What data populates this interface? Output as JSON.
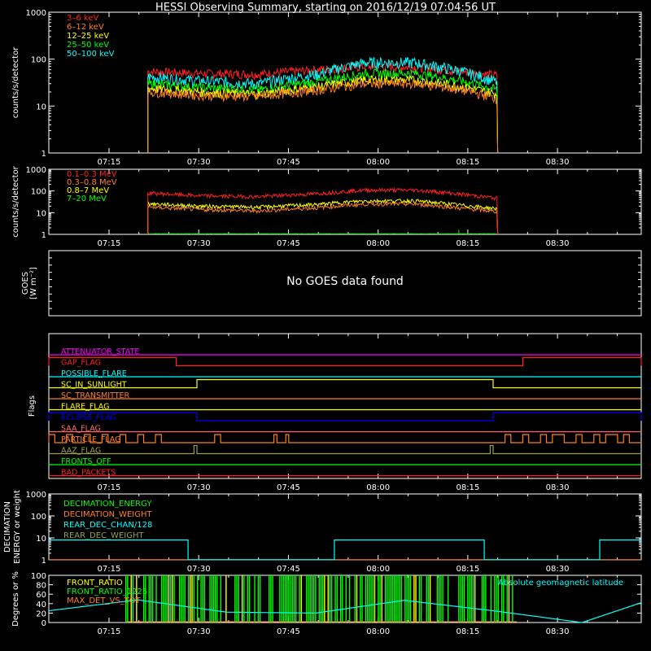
{
  "title": "HESSI Observing Summary, starting on 2016/12/19 07:04:56 UT",
  "colors": {
    "background": "#000000",
    "axis": "#ffffff",
    "red": "#ff2020",
    "orange": "#ff7f1f",
    "yellow": "#ffff00",
    "green": "#00ff00",
    "cyan": "#00ffff",
    "magenta": "#ff00ff",
    "blue": "#0000ff",
    "pink": "#ff6a6a",
    "olive": "#9aa04a",
    "lime": "#00ff00"
  },
  "time_axis": {
    "start": "07:04:56",
    "end": "08:44:00",
    "tick_labels": [
      "07:15",
      "07:30",
      "07:45",
      "08:00",
      "08:15",
      "08:30"
    ],
    "tick_minutes": [
      15,
      30,
      45,
      60,
      75,
      90
    ]
  },
  "chart_data": [
    {
      "id": "panel1",
      "type": "line",
      "ylabel": "counts/s/detector",
      "yscale": "log",
      "ylim": [
        1,
        1000
      ],
      "ytick_labels": [
        "1",
        "10",
        "100",
        "1000"
      ],
      "legend_placement": "top-left",
      "series": [
        {
          "name": "3–6 keV",
          "color_key": "red",
          "x_minutes": [
            21.5,
            30,
            40,
            50,
            58,
            66,
            74,
            80
          ],
          "y": [
            55,
            50,
            48,
            60,
            70,
            68,
            55,
            45
          ]
        },
        {
          "name": "6–12 keV",
          "color_key": "orange",
          "x_minutes": [
            21.5,
            30,
            40,
            50,
            58,
            66,
            74,
            80
          ],
          "y": [
            20,
            17,
            16,
            22,
            30,
            30,
            22,
            14
          ]
        },
        {
          "name": "12–25 keV",
          "color_key": "yellow",
          "x_minutes": [
            21.5,
            30,
            40,
            50,
            58,
            66,
            74,
            80
          ],
          "y": [
            24,
            20,
            18,
            26,
            36,
            36,
            26,
            18
          ]
        },
        {
          "name": "25–50 keV",
          "color_key": "green",
          "x_minutes": [
            21.5,
            30,
            40,
            50,
            58,
            66,
            74,
            80
          ],
          "y": [
            30,
            25,
            22,
            33,
            50,
            50,
            34,
            22
          ]
        },
        {
          "name": "50–100 keV",
          "color_key": "cyan",
          "x_minutes": [
            21.5,
            30,
            40,
            50,
            58,
            66,
            74,
            80
          ],
          "y": [
            42,
            35,
            30,
            48,
            85,
            85,
            55,
            32
          ]
        }
      ]
    },
    {
      "id": "panel2",
      "type": "line",
      "ylabel": "counts/s/detector",
      "yscale": "log",
      "ylim": [
        1,
        1000
      ],
      "ytick_labels": [
        "1",
        "10",
        "100",
        "1000"
      ],
      "legend_placement": "top-left",
      "series": [
        {
          "name": "0.1–0.3 MeV",
          "color_key": "red",
          "x_minutes": [
            21.5,
            30,
            40,
            50,
            58,
            66,
            74,
            80
          ],
          "y": [
            80,
            60,
            55,
            75,
            110,
            110,
            70,
            45
          ]
        },
        {
          "name": "0.3–0.8 MeV",
          "color_key": "orange",
          "x_minutes": [
            21.5,
            30,
            40,
            50,
            58,
            66,
            74,
            80
          ],
          "y": [
            18,
            14,
            12,
            17,
            25,
            25,
            16,
            11
          ]
        },
        {
          "name": "0.8–7 MeV",
          "color_key": "yellow",
          "x_minutes": [
            21.5,
            30,
            40,
            50,
            58,
            66,
            74,
            80
          ],
          "y": [
            26,
            20,
            18,
            24,
            35,
            35,
            22,
            15
          ]
        },
        {
          "name": "7–20 MeV",
          "color_key": "green",
          "x_minutes": [
            21.5,
            80
          ],
          "y": [
            1.05,
            1.05
          ]
        }
      ]
    },
    {
      "id": "panel3",
      "type": "line",
      "ylabel_lines": [
        "GOES",
        "[W m⁻²]"
      ],
      "ylabel_display": "GOES [W m⁻²]",
      "message": "No GOES data found",
      "series": []
    },
    {
      "id": "panel4",
      "type": "line",
      "ylabel": "Flags",
      "flags": [
        {
          "name": "ATTENUATOR_STATE",
          "color_key": "magenta",
          "on_segments": []
        },
        {
          "name": "GAP_FLAG",
          "color_key": "red",
          "on_segments": [
            [
              0,
              21.5
            ],
            [
              80,
              100
            ]
          ]
        },
        {
          "name": "POSSIBLE_FLARE",
          "color_key": "cyan",
          "on_segments": []
        },
        {
          "name": "SC_IN_SUNLIGHT",
          "color_key": "yellow",
          "on_segments": [
            [
              25,
              75
            ]
          ]
        },
        {
          "name": "SC_TRANSMITTER",
          "color_key": "orange",
          "on_segments": []
        },
        {
          "name": "FLARE_FLAG",
          "color_key": "yellow",
          "on_segments": []
        },
        {
          "name": "ECLIPSE_FLAG",
          "color_key": "blue",
          "on_segments": [
            [
              0,
              25
            ],
            [
              75,
              100
            ]
          ]
        },
        {
          "name": "SAA_FLAG",
          "color_key": "pink",
          "on_segments": []
        },
        {
          "name": "PARTICLE_FLAG",
          "color_key": "orange",
          "on_segments": [
            [
              0,
              1
            ],
            [
              3,
              4
            ],
            [
              6,
              7
            ],
            [
              9,
              10
            ],
            [
              12,
              13
            ],
            [
              15,
              16
            ],
            [
              18,
              19
            ],
            [
              28,
              29
            ],
            [
              38,
              38.5
            ],
            [
              40,
              40.5
            ],
            [
              77,
              78
            ],
            [
              80,
              81
            ],
            [
              83,
              84
            ],
            [
              85,
              87
            ],
            [
              89,
              90
            ],
            [
              92,
              93
            ],
            [
              94,
              96
            ],
            [
              97,
              98
            ]
          ]
        },
        {
          "name": "AAZ_FLAG",
          "color_key": "olive",
          "on_segments": [
            [
              24.5,
              25
            ],
            [
              74.5,
              75
            ]
          ]
        },
        {
          "name": "FRONTS_OFF",
          "color_key": "lime",
          "on_segments": []
        },
        {
          "name": "BAD_PACKETS",
          "color_key": "red",
          "on_segments": []
        }
      ]
    },
    {
      "id": "panel5",
      "type": "line",
      "ylabel_lines": [
        "DECIMATION",
        "ENERGY or weight"
      ],
      "ylabel_display": "DECIMATION ENERGY or weight",
      "yscale": "log",
      "ylim": [
        1,
        1000
      ],
      "ytick_labels": [
        "1",
        "10",
        "100",
        "1000"
      ],
      "legend_placement": "top-left",
      "series": [
        {
          "name": "DECIMATION_ENERGY",
          "color_key": "green",
          "segments": []
        },
        {
          "name": "DECIMATION_WEIGHT",
          "color_key": "orange",
          "segments": [
            [
              0,
              100,
              1
            ]
          ]
        },
        {
          "name": "REAR_DEC_CHAN/128",
          "color_key": "cyan",
          "segments": [
            [
              0,
              23.5,
              8
            ],
            [
              23.5,
              48.2,
              1
            ],
            [
              48.2,
              73.5,
              8
            ],
            [
              73.5,
              93,
              1
            ],
            [
              93,
              100,
              8
            ]
          ]
        },
        {
          "name": "REAR_DEC_WEIGHT",
          "color_key": "olive",
          "segments": []
        }
      ]
    },
    {
      "id": "panel6",
      "type": "line",
      "ylabel": "Degrees or %",
      "ylim": [
        0,
        100
      ],
      "ytick_labels": [
        "0",
        "20",
        "40",
        "60",
        "80",
        "100"
      ],
      "legend_placement": "top-left",
      "right_label": "Absolute geomagnetic latitude",
      "series": [
        {
          "name": "FRONT_RATIO",
          "color_key": "yellow"
        },
        {
          "name": "FRONT_RATIO_1225",
          "color_key": "green"
        },
        {
          "name": "MAX_DET_VS_TOT",
          "color_key": "orange"
        },
        {
          "name": "Absolute geomagnetic latitude",
          "color_key": "cyan",
          "x_minutes": [
            0,
            15,
            30,
            45,
            60,
            75,
            90,
            100
          ],
          "y": [
            25,
            48,
            22,
            20,
            47,
            25,
            0,
            42
          ]
        }
      ]
    }
  ]
}
